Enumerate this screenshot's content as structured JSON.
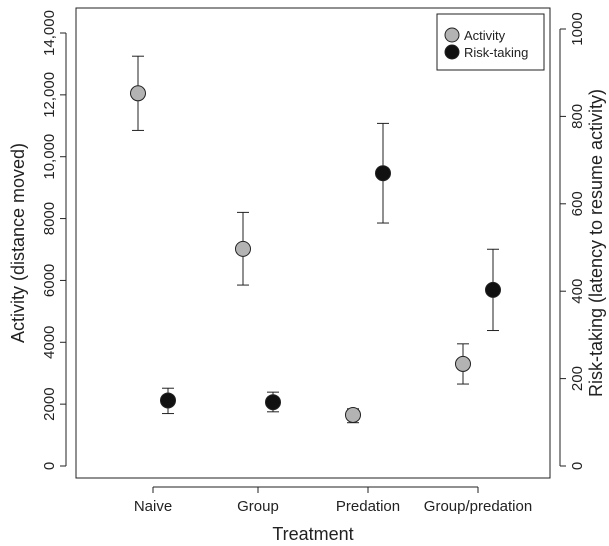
{
  "chart_data": {
    "type": "scatter",
    "xlabel": "Treatment",
    "ylabel": "Activity (distance moved)",
    "y2label": "Risk-taking (latency to resume activity)",
    "categories": [
      "Naive",
      "Group",
      "Predation",
      "Group/predation"
    ],
    "ylim": [
      0,
      14000
    ],
    "y2lim": [
      0,
      1000
    ],
    "yticks": [
      0,
      2000,
      4000,
      6000,
      8000,
      10000,
      12000,
      14000
    ],
    "ytick_labels": [
      "0",
      "2000",
      "4000",
      "6000",
      "8000",
      "10,000",
      "12,000",
      "14,000"
    ],
    "y2ticks": [
      0,
      200,
      400,
      600,
      800,
      1000
    ],
    "y2tick_labels": [
      "0",
      "200",
      "400",
      "600",
      "800",
      "1000"
    ],
    "legend_position": "top-right",
    "series": [
      {
        "name": "Activity",
        "axis": "left",
        "color": "#b3b3b3",
        "values": [
          12050,
          7020,
          1650,
          3300
        ],
        "err_low": [
          10850,
          5850,
          1400,
          2650
        ],
        "err_high": [
          13250,
          8200,
          1850,
          3950
        ]
      },
      {
        "name": "Risk-taking",
        "axis": "right",
        "color": "#111111",
        "values": [
          150,
          146,
          670,
          403
        ],
        "err_low": [
          120,
          124,
          556,
          310
        ],
        "err_high": [
          178,
          169,
          784,
          496
        ]
      }
    ]
  }
}
